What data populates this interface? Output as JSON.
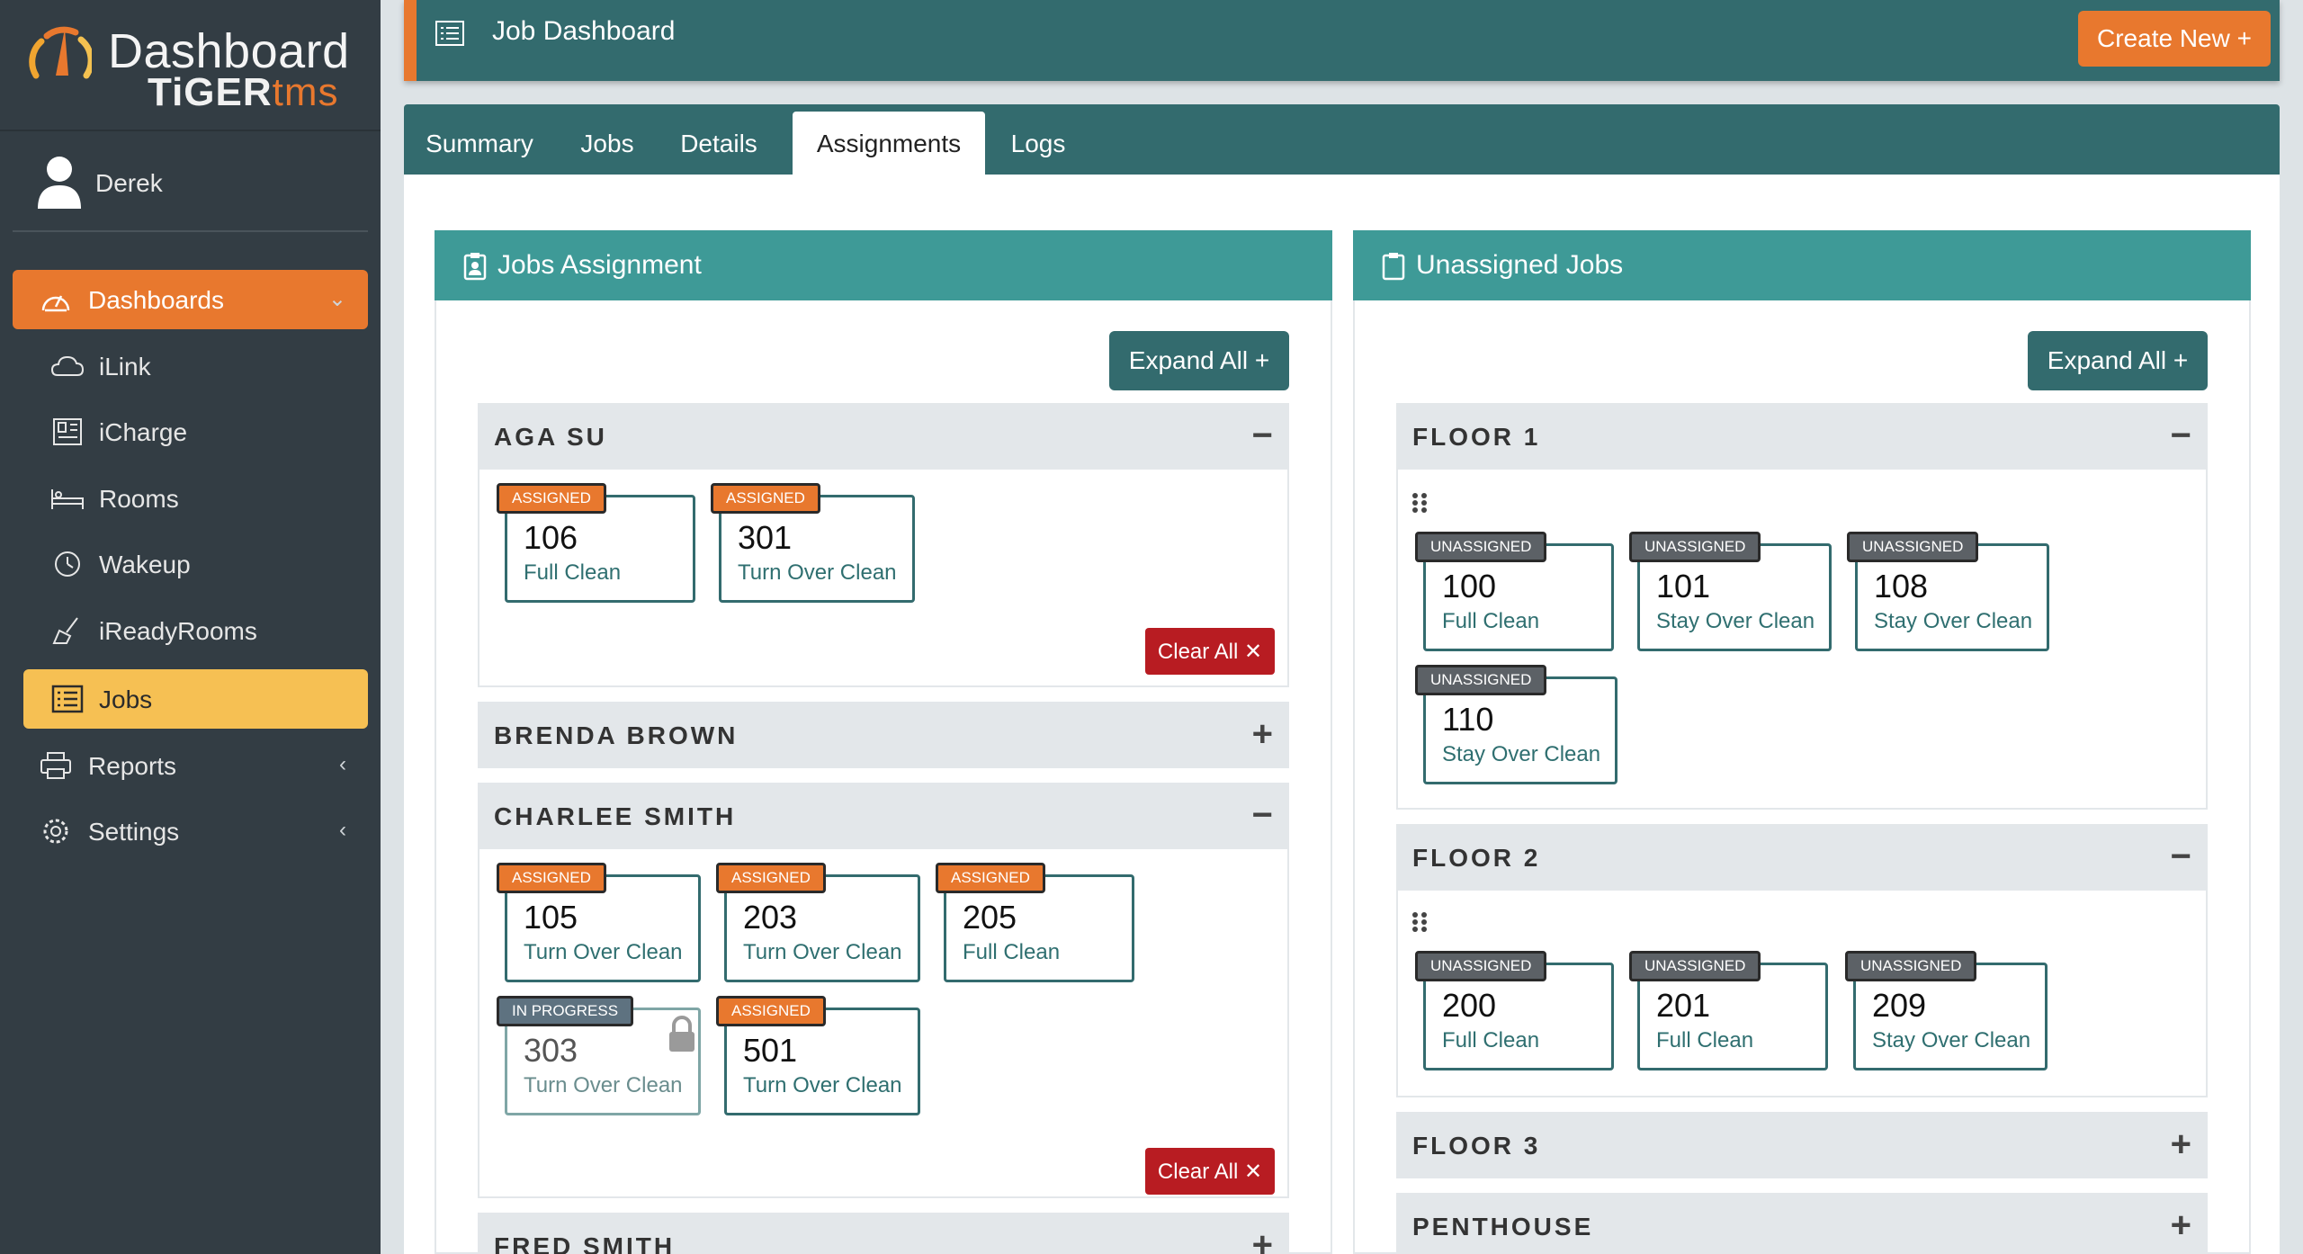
{
  "brand": {
    "title": "Dashboard",
    "sub_prefix": "TiGER",
    "sub_suffix": "tms"
  },
  "user": {
    "name": "Derek"
  },
  "nav": {
    "dashboards": "Dashboards",
    "ilink": "iLink",
    "icharge": "iCharge",
    "rooms": "Rooms",
    "wakeup": "Wakeup",
    "iready": "iReadyRooms",
    "jobs": "Jobs",
    "reports": "Reports",
    "settings": "Settings",
    "caret_down": "⌄",
    "caret_left": "‹"
  },
  "header": {
    "title": "Job Dashboard",
    "create_label": "Create New +"
  },
  "tabs": [
    "Summary",
    "Jobs",
    "Details",
    "Assignments",
    "Logs"
  ],
  "active_tab": "Assignments",
  "left_panel": {
    "title": "Jobs Assignment",
    "expand_label": "Expand All +",
    "clear_label": "Clear All ✕",
    "groups": [
      {
        "name": "AGA SU",
        "toggle": "−",
        "cards": [
          {
            "badge": "ASSIGNED",
            "number": "106",
            "desc": "Full Clean"
          },
          {
            "badge": "ASSIGNED",
            "number": "301",
            "desc": "Turn Over Clean"
          }
        ]
      },
      {
        "name": "BRENDA BROWN",
        "toggle": "+"
      },
      {
        "name": "CHARLEE SMITH",
        "toggle": "−",
        "cards": [
          {
            "badge": "ASSIGNED",
            "number": "105",
            "desc": "Turn Over Clean"
          },
          {
            "badge": "ASSIGNED",
            "number": "203",
            "desc": "Turn Over Clean"
          },
          {
            "badge": "ASSIGNED",
            "number": "205",
            "desc": "Full Clean"
          },
          {
            "badge": "IN PROGRESS",
            "number": "303",
            "desc": "Turn Over Clean",
            "locked": true
          },
          {
            "badge": "ASSIGNED",
            "number": "501",
            "desc": "Turn Over Clean"
          }
        ]
      },
      {
        "name": "FRED SMITH",
        "toggle": "+"
      }
    ]
  },
  "right_panel": {
    "title": "Unassigned Jobs",
    "expand_label": "Expand All +",
    "groups": [
      {
        "name": "FLOOR 1",
        "toggle": "−",
        "cards": [
          {
            "badge": "UNASSIGNED",
            "number": "100",
            "desc": "Full Clean"
          },
          {
            "badge": "UNASSIGNED",
            "number": "101",
            "desc": "Stay Over Clean"
          },
          {
            "badge": "UNASSIGNED",
            "number": "108",
            "desc": "Stay Over Clean"
          },
          {
            "badge": "UNASSIGNED",
            "number": "110",
            "desc": "Stay Over Clean"
          }
        ]
      },
      {
        "name": "FLOOR 2",
        "toggle": "−",
        "cards": [
          {
            "badge": "UNASSIGNED",
            "number": "200",
            "desc": "Full Clean"
          },
          {
            "badge": "UNASSIGNED",
            "number": "201",
            "desc": "Full Clean"
          },
          {
            "badge": "UNASSIGNED",
            "number": "209",
            "desc": "Stay Over Clean"
          }
        ]
      },
      {
        "name": "FLOOR 3",
        "toggle": "+"
      },
      {
        "name": "PENTHOUSE",
        "toggle": "+"
      }
    ]
  },
  "colors": {
    "sidebar": "#333d44",
    "accent_orange": "#e8782e",
    "teal_dark": "#336b6e",
    "teal_panel": "#3e9a97",
    "selected_yellow": "#f6c053",
    "danger_red": "#b81c22"
  }
}
